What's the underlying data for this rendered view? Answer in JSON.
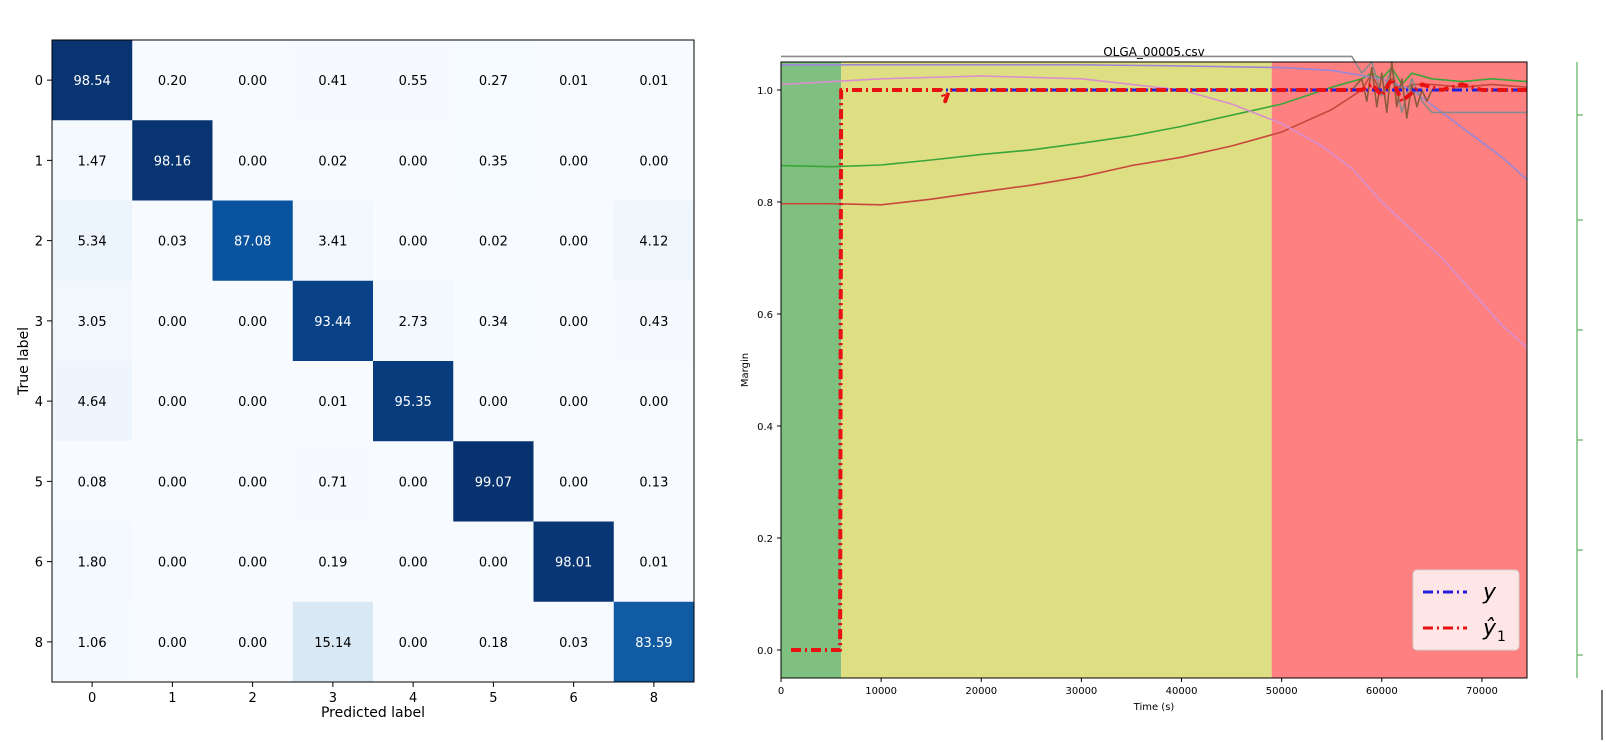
{
  "chart_data": [
    {
      "type": "heatmap",
      "title": "",
      "xlabel": "Predicted label",
      "ylabel": "True label",
      "x_categories": [
        "0",
        "1",
        "2",
        "3",
        "4",
        "5",
        "6",
        "8"
      ],
      "y_categories": [
        "0",
        "1",
        "2",
        "3",
        "4",
        "5",
        "6",
        "8"
      ],
      "colormap": "Blues",
      "vmin": 0,
      "vmax": 100,
      "values": [
        [
          "98.54",
          "0.20",
          "0.00",
          "0.41",
          "0.55",
          "0.27",
          "0.01",
          "0.01"
        ],
        [
          "1.47",
          "98.16",
          "0.00",
          "0.02",
          "0.00",
          "0.35",
          "0.00",
          "0.00"
        ],
        [
          "5.34",
          "0.03",
          "87.08",
          "3.41",
          "0.00",
          "0.02",
          "0.00",
          "4.12"
        ],
        [
          "3.05",
          "0.00",
          "0.00",
          "93.44",
          "2.73",
          "0.34",
          "0.00",
          "0.43"
        ],
        [
          "4.64",
          "0.00",
          "0.00",
          "0.01",
          "95.35",
          "0.00",
          "0.00",
          "0.00"
        ],
        [
          "0.08",
          "0.00",
          "0.00",
          "0.71",
          "0.00",
          "99.07",
          "0.00",
          "0.13"
        ],
        [
          "1.80",
          "0.00",
          "0.00",
          "0.19",
          "0.00",
          "0.00",
          "98.01",
          "0.01"
        ],
        [
          "1.06",
          "0.00",
          "0.00",
          "15.14",
          "0.00",
          "0.18",
          "0.03",
          "83.59"
        ]
      ],
      "grid": false
    },
    {
      "type": "line",
      "title": "OLGA_00005.csv",
      "xlabel": "Time (s)",
      "ylabel": "Margin",
      "xlim": [
        0,
        74500
      ],
      "ylim": [
        -0.05,
        1.05
      ],
      "xticks": [
        0,
        10000,
        20000,
        30000,
        40000,
        50000,
        60000,
        70000
      ],
      "xtick_labels": [
        "0",
        "10000",
        "20000",
        "30000",
        "40000",
        "50000",
        "60000",
        "70000"
      ],
      "yticks": [
        0.0,
        0.2,
        0.4,
        0.6,
        0.8,
        1.0
      ],
      "ytick_labels": [
        "0.0",
        "0.2",
        "0.4",
        "0.6",
        "0.8",
        "1.0"
      ],
      "grid": false,
      "legend_position": "bottom-right",
      "background_regions": [
        {
          "x_start": 0,
          "x_end": 6000,
          "color": "#7fbf7f"
        },
        {
          "x_start": 6000,
          "x_end": 49000,
          "color": "#dede82"
        },
        {
          "x_start": 49000,
          "x_end": 74500,
          "color": "#ff8080"
        }
      ],
      "series": [
        {
          "name": "y",
          "legend_label": "y",
          "color": "#1f1fe0",
          "style": "dash-dot",
          "x": [
            1000,
            5900,
            6000,
            74500
          ],
          "y": [
            0.0,
            0.0,
            1.0,
            1.0
          ]
        },
        {
          "name": "ŷ1",
          "legend_label": "ŷ",
          "legend_sub": "1",
          "color": "#e81010",
          "style": "dash-dot",
          "x": [
            1000,
            5900,
            6000,
            16000,
            16400,
            16800,
            58000,
            59000,
            60000,
            61000,
            62000,
            64000,
            66000,
            68000,
            70000,
            74500
          ],
          "y": [
            0.0,
            0.0,
            1.0,
            1.0,
            0.98,
            1.0,
            1.0,
            1.01,
            0.99,
            1.02,
            0.98,
            1.01,
            1.0,
            1.01,
            1.0,
            1.0
          ]
        },
        {
          "color": "#3aa63a",
          "style": "solid",
          "x": [
            0,
            5000,
            10000,
            15000,
            20000,
            25000,
            30000,
            35000,
            40000,
            45000,
            50000,
            55000,
            58000,
            59000,
            60000,
            61000,
            62000,
            63000,
            65000,
            68000,
            71000,
            74500
          ],
          "y": [
            0.865,
            0.863,
            0.866,
            0.875,
            0.885,
            0.893,
            0.905,
            0.918,
            0.935,
            0.955,
            0.975,
            1.005,
            1.02,
            1.03,
            1.02,
            1.04,
            1.01,
            1.03,
            1.02,
            1.015,
            1.02,
            1.015
          ]
        },
        {
          "color": "#c8473c",
          "style": "solid",
          "x": [
            0,
            5000,
            10000,
            15000,
            20000,
            25000,
            30000,
            35000,
            40000,
            45000,
            50000,
            55000,
            58000,
            59000,
            60000,
            61000,
            62000,
            63000,
            65000,
            68000,
            71000,
            74500
          ],
          "y": [
            0.797,
            0.797,
            0.795,
            0.805,
            0.818,
            0.83,
            0.845,
            0.865,
            0.88,
            0.9,
            0.925,
            0.965,
            1.0,
            1.03,
            0.99,
            1.02,
            1.0,
            1.01,
            1.01,
            1.005,
            1.01,
            1.005
          ]
        },
        {
          "color": "#9b87d6",
          "style": "solid",
          "x": [
            0,
            10000,
            20000,
            30000,
            40000,
            50000,
            55000,
            60000,
            63000,
            66000,
            69000,
            72000,
            74500
          ],
          "y": [
            1.045,
            1.045,
            1.045,
            1.045,
            1.043,
            1.04,
            1.035,
            1.02,
            1.0,
            0.96,
            0.92,
            0.88,
            0.84
          ]
        },
        {
          "color": "#d98fce",
          "style": "solid",
          "x": [
            0,
            10000,
            20000,
            30000,
            40000,
            45000,
            50000,
            54000,
            57000,
            60000,
            63000,
            66000,
            68000,
            70000,
            72000,
            74500
          ],
          "y": [
            1.01,
            1.02,
            1.025,
            1.02,
            1.0,
            0.975,
            0.94,
            0.9,
            0.86,
            0.8,
            0.75,
            0.7,
            0.66,
            0.62,
            0.58,
            0.54
          ]
        },
        {
          "color": "#8a8a8a",
          "style": "solid",
          "x": [
            0,
            20000,
            40000,
            55000,
            57000,
            58000,
            59000,
            60000,
            61000,
            62000,
            63000,
            64000,
            65000,
            67000,
            70000,
            74500
          ],
          "y": [
            1.06,
            1.06,
            1.06,
            1.06,
            1.06,
            1.03,
            1.05,
            0.99,
            1.04,
            0.96,
            1.02,
            0.98,
            0.96,
            0.96,
            0.96,
            0.96
          ]
        },
        {
          "color": "#8a5b3c",
          "style": "solid",
          "x": [
            57000,
            58000,
            58500,
            59000,
            59500,
            60000,
            60500,
            61000,
            61500,
            62000,
            62500,
            63000,
            63500,
            64000,
            64500,
            65000
          ],
          "y": [
            1.0,
            1.02,
            0.98,
            1.04,
            0.97,
            1.03,
            0.96,
            1.05,
            0.97,
            1.02,
            0.95,
            1.01,
            0.97,
            1.0,
            0.98,
            1.0
          ]
        }
      ]
    }
  ]
}
